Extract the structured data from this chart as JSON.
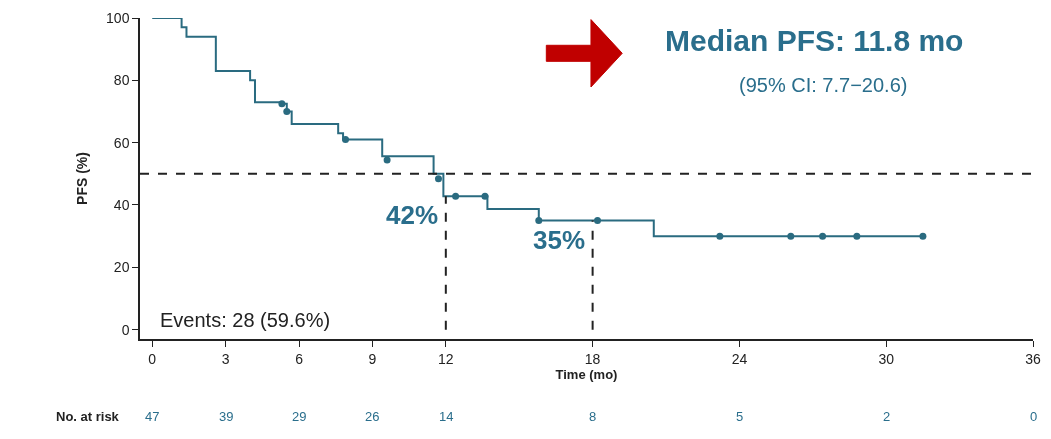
{
  "chart_data": {
    "type": "step",
    "xlabel": "Time (mo)",
    "ylabel": "PFS (%)",
    "xlim": [
      -0.5,
      36
    ],
    "xticks": [
      0,
      3,
      6,
      9,
      12,
      18,
      24,
      30,
      36
    ],
    "ylim": [
      -3,
      100
    ],
    "yticks": [
      0,
      20,
      40,
      60,
      80,
      100
    ],
    "series": [
      {
        "color": "#2a6b80",
        "marker": "none",
        "x": [
          0,
          1.2,
          1.4,
          2.6,
          4.0,
          4.2,
          5.3,
          5.5,
          5.7,
          7.6,
          7.8,
          9.4,
          11.5,
          11.9,
          13.7,
          15.8,
          20.5,
          31.5
        ],
        "values": [
          100,
          97,
          94,
          83,
          80,
          73,
          72.5,
          70,
          66,
          63,
          61,
          55.6,
          50,
          42.8,
          38.7,
          35,
          30,
          30
        ]
      },
      {
        "type": "scatter",
        "color": "#2a6b80",
        "marker": "circle",
        "x": [
          5.3,
          5.5,
          7.9,
          9.6,
          11.7,
          12.4,
          13.6,
          15.8,
          18.2,
          23.2,
          26.1,
          27.4,
          28.8,
          31.5
        ],
        "values": [
          72.5,
          70,
          61,
          54.4,
          48.4,
          42.8,
          42.8,
          35,
          35,
          30,
          30,
          30,
          30,
          30
        ]
      },
      {
        "type": "line",
        "color": "#222222",
        "line_style": "dashed",
        "x": [
          12,
          12
        ],
        "values": [
          0,
          42.8
        ]
      },
      {
        "type": "line",
        "color": "#222222",
        "line_style": "dashed",
        "x": [
          18,
          18
        ],
        "values": [
          0,
          35
        ]
      }
    ],
    "ref_lines": [
      {
        "axis": "y",
        "value": 50,
        "color": "#222222",
        "line_style": "dashed"
      }
    ],
    "annotations": [
      "Median PFS: 11.8 mo",
      "(95% CI: 7.7−20.6)",
      "Events: 28 (59.6%)",
      {
        "text": "42%",
        "x": 12,
        "y": 42.8
      },
      {
        "text": "35%",
        "x": 18,
        "y": 35
      },
      "No. at risk",
      "47",
      "39",
      "29",
      "26",
      "14",
      "8",
      "5",
      "2",
      "0"
    ]
  }
}
